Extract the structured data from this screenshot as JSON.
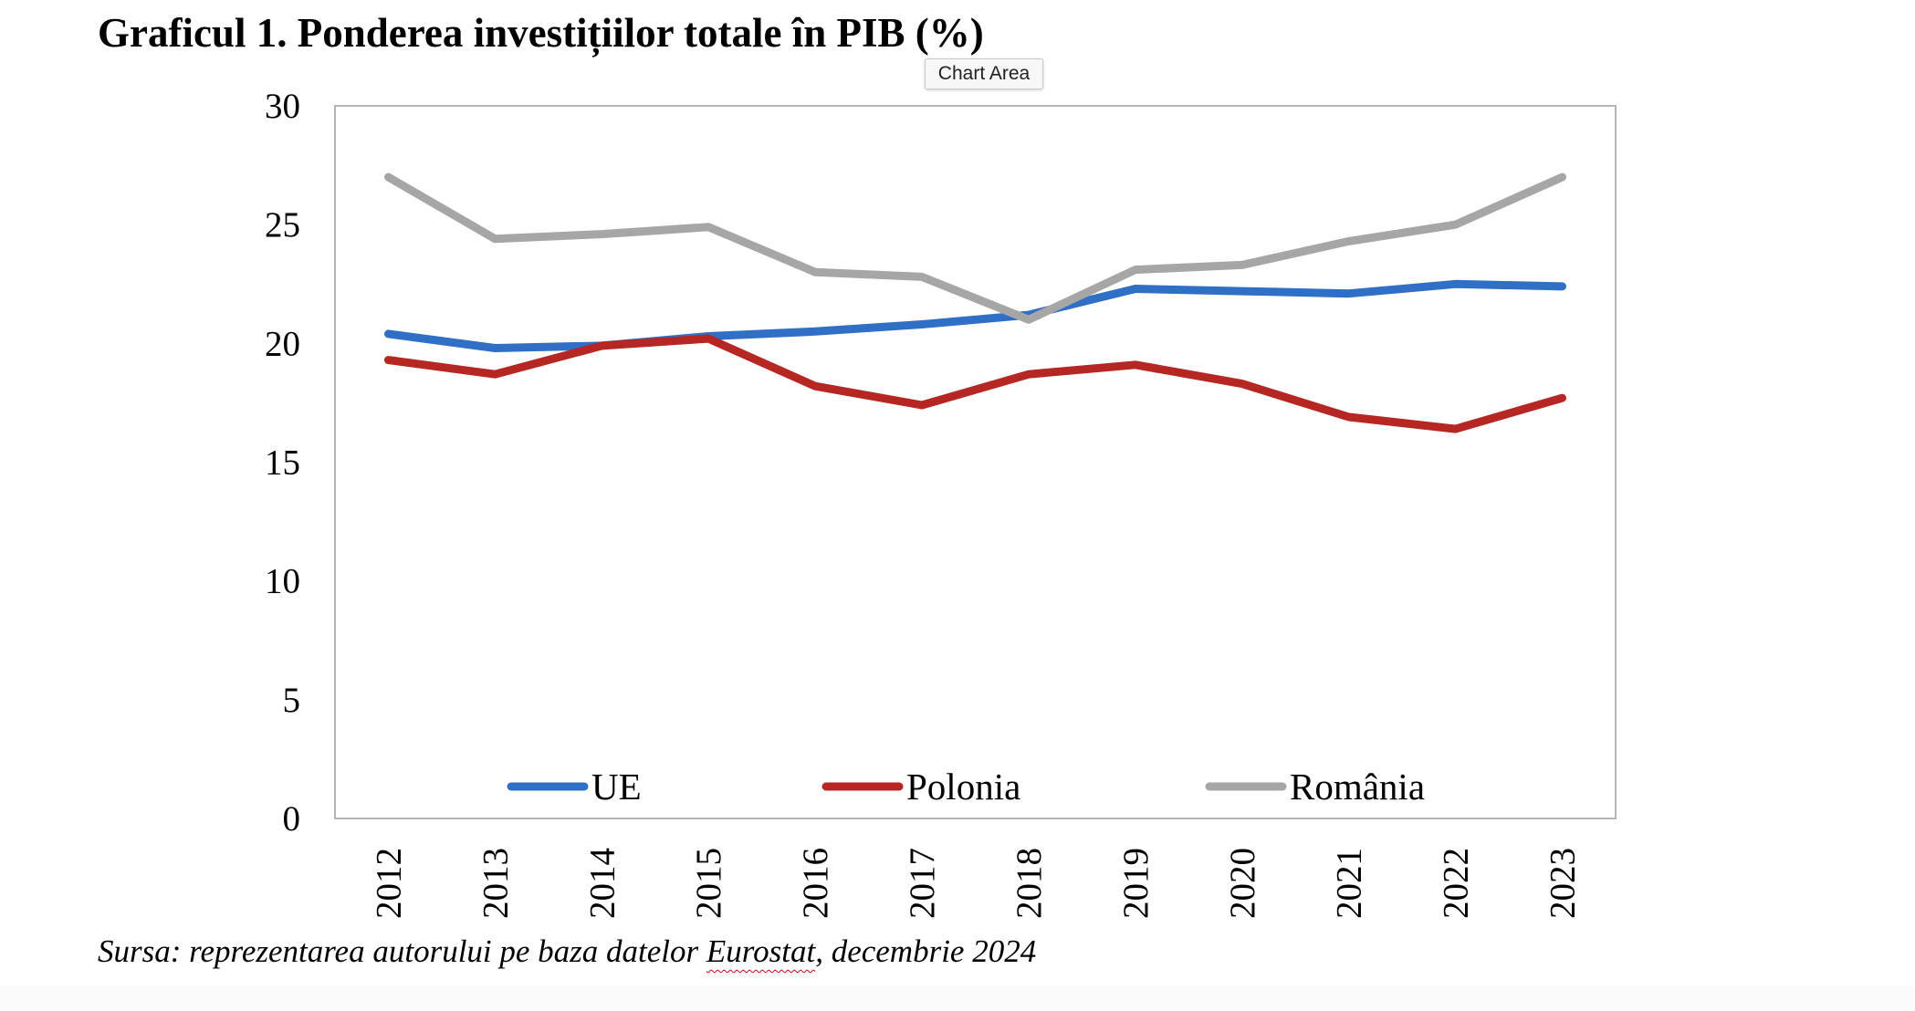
{
  "title": "Graficul 1. Ponderea investițiilor totale în PIB (%)",
  "tooltip": "Chart Area",
  "source": {
    "prefix": "Sursa: reprezentarea autorului pe baza datelor ",
    "highlight": "Eurostat",
    "suffix": ", decembrie 2024"
  },
  "chart_data": {
    "type": "line",
    "title": "Graficul 1. Ponderea investițiilor totale în PIB (%)",
    "xlabel": "",
    "ylabel": "",
    "x": [
      "2012",
      "2013",
      "2014",
      "2015",
      "2016",
      "2017",
      "2018",
      "2019",
      "2020",
      "2021",
      "2022",
      "2023"
    ],
    "ylim": [
      0,
      30
    ],
    "yticks": [
      0,
      5,
      10,
      15,
      20,
      25,
      30
    ],
    "grid": false,
    "legend": "bottom, inside plot area",
    "series": [
      {
        "name": "UE",
        "color": "#2f6fc5",
        "values": [
          20.4,
          19.8,
          19.9,
          20.3,
          20.5,
          20.8,
          21.2,
          22.3,
          22.2,
          22.1,
          22.5,
          22.4
        ]
      },
      {
        "name": "Polonia",
        "color": "#b62622",
        "values": [
          19.3,
          18.7,
          19.9,
          20.2,
          18.2,
          17.4,
          18.7,
          19.1,
          18.3,
          16.9,
          16.4,
          17.7
        ]
      },
      {
        "name": "România",
        "color": "#a6a6a6",
        "values": [
          27.0,
          24.4,
          24.6,
          24.9,
          23.0,
          22.8,
          21.0,
          23.1,
          23.3,
          24.3,
          25.0,
          27.0
        ]
      }
    ]
  }
}
